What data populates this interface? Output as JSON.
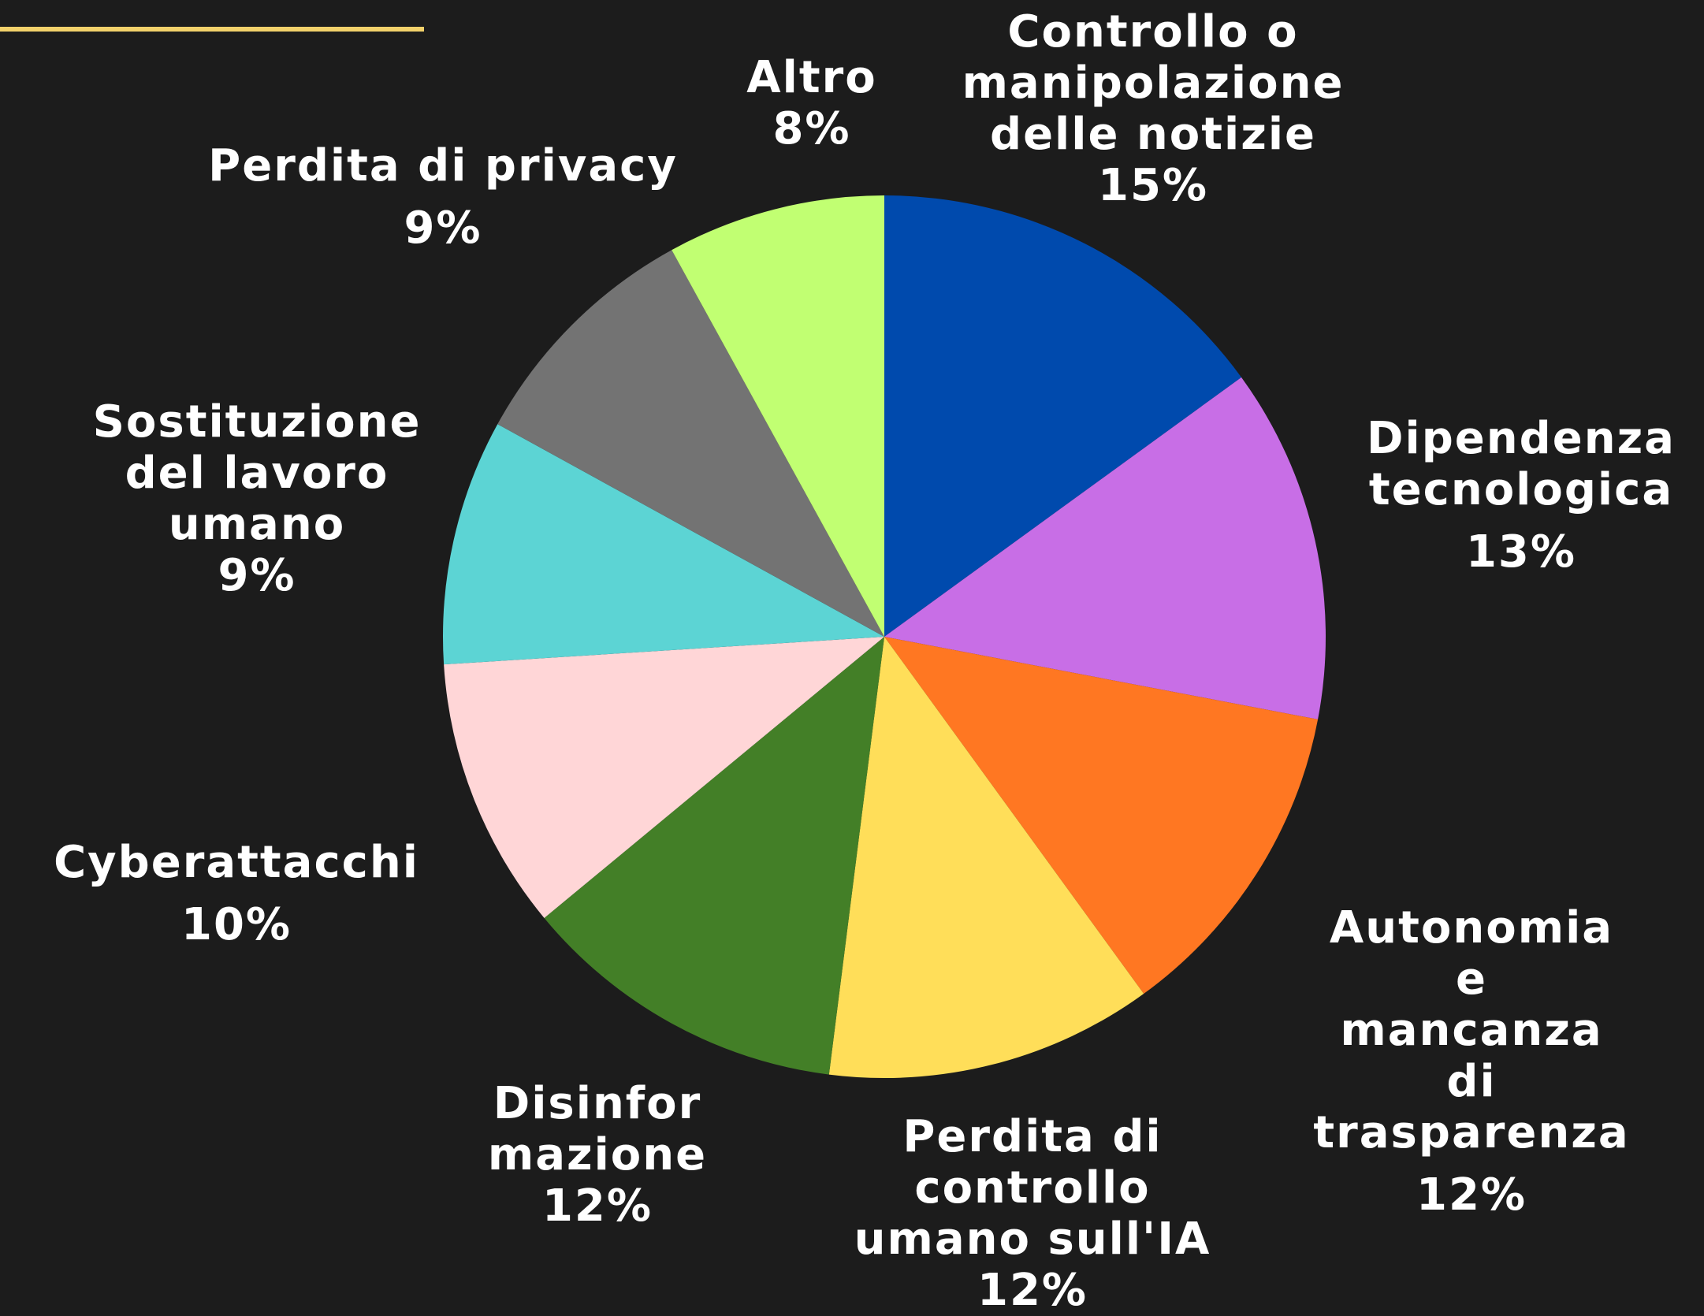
{
  "accent_color": "#f2d16b",
  "background_color": "#1c1c1c",
  "chart_data": {
    "type": "pie",
    "title": "",
    "start_angle_deg": 0,
    "direction": "clockwise",
    "slices": [
      {
        "label": "Controllo o\nmanipolazione\ndelle notizie",
        "value": 15,
        "display": "15%",
        "color": "#004aad"
      },
      {
        "label": "Dipendenza\ntecnologica",
        "value": 13,
        "display": "13%",
        "color": "#c86ee6"
      },
      {
        "label": "Autonomia e\nmancanza di\ntrasparenza",
        "value": 12,
        "display": "12%",
        "color": "#ff7722"
      },
      {
        "label": "Perdita di\ncontrollo\numano sull'IA",
        "value": 12,
        "display": "12%",
        "color": "#ffde59"
      },
      {
        "label": "Disinfor\nmazione",
        "value": 12,
        "display": "12%",
        "color": "#437f27"
      },
      {
        "label": "Cyberattacchi",
        "value": 10,
        "display": "10%",
        "color": "#ffd6d7"
      },
      {
        "label": "Sostituzione\ndel lavoro\numano",
        "value": 9,
        "display": "9%",
        "color": "#5cd4d4"
      },
      {
        "label": "Perdita di privacy",
        "value": 9,
        "display": "9%",
        "color": "#737373"
      },
      {
        "label": "Altro",
        "value": 8,
        "display": "8%",
        "color": "#c1ff72"
      }
    ]
  }
}
